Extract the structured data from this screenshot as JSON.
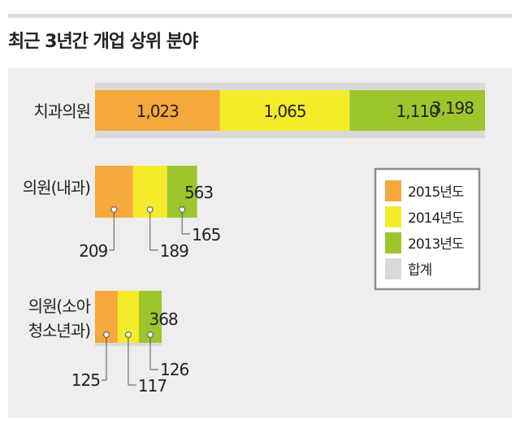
{
  "title": "최근 3년간 개업 상위 분야",
  "colors": {
    "y2015": "#f5a83c",
    "y2014": "#f4ec2a",
    "y2013": "#9dc62d",
    "total": "#d9d9d9",
    "panel": "#eeeeee",
    "legend_border": "#8c8c8c"
  },
  "chart_data": {
    "type": "bar",
    "title": "최근 3년간 개업 상위 분야",
    "categories": [
      "치과의원",
      "의원(내과)",
      "의원(소아 청소년과)"
    ],
    "category_lines": [
      [
        "치과의원"
      ],
      [
        "의원(내과)"
      ],
      [
        "의원(소아",
        "청소년과)"
      ]
    ],
    "series": [
      {
        "name": "2015년도",
        "values": [
          1023,
          209,
          125
        ]
      },
      {
        "name": "2014년도",
        "values": [
          1065,
          189,
          117
        ]
      },
      {
        "name": "2013년도",
        "values": [
          1110,
          165,
          126
        ]
      },
      {
        "name": "합계",
        "values": [
          3198,
          563,
          368
        ]
      }
    ],
    "value_labels": {
      "y2015": [
        "1,023",
        "209",
        "125"
      ],
      "y2014": [
        "1,065",
        "189",
        "117"
      ],
      "y2013": [
        "1,110",
        "165",
        "126"
      ],
      "total": [
        "3,198",
        "563",
        "368"
      ]
    },
    "orientation": "horizontal",
    "stacking": "stacked segments drawn over total bar",
    "grid": false,
    "legend_position": "right"
  }
}
